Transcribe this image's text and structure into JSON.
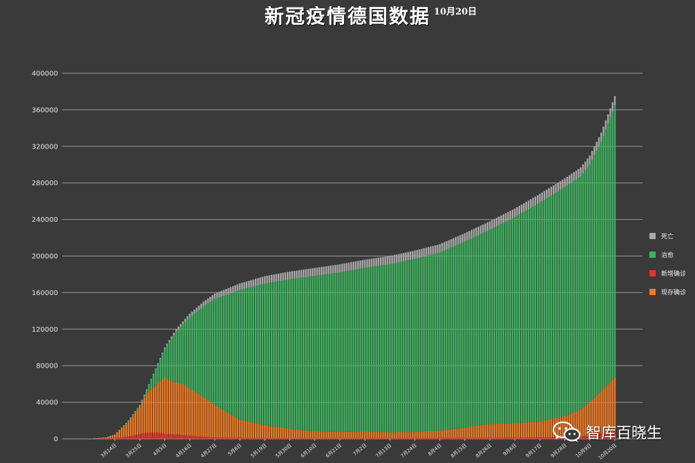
{
  "title": "新冠疫情德国数据",
  "date_label": "10月20日",
  "watermark": {
    "text": "智库百晓生",
    "icon": "wechat-icon"
  },
  "colors": {
    "background": "#3a3a3a",
    "grid": "#9a9a9a",
    "death": "#a9a9a9",
    "recovered": "#3cb55e",
    "new_confirmed": "#e8322a",
    "active": "#f47a1f"
  },
  "chart_data": {
    "type": "bar",
    "stacked": true,
    "title": "新冠疫情德国数据",
    "ylim": [
      0,
      400000
    ],
    "yticks": [
      0,
      40000,
      80000,
      120000,
      160000,
      200000,
      240000,
      280000,
      320000,
      360000,
      400000
    ],
    "x_start": "2020-03-03",
    "x_end": "2020-10-20",
    "xtick_labels": [
      "3月14日",
      "3月25日",
      "4月5日",
      "4月16日",
      "4月27日",
      "5月8日",
      "5月19日",
      "5月30日",
      "6月10日",
      "6月21日",
      "7月2日",
      "7月13日",
      "7月24日",
      "8月4日",
      "8月15日",
      "8月26日",
      "9月6日",
      "9月17日",
      "9月28日",
      "10月9日",
      "10月20日"
    ],
    "legend_position": "right",
    "legend": [
      "死亡",
      "治愈",
      "新增确诊",
      "现存确诊"
    ],
    "series_order_bottom_to_top": [
      "现存确诊",
      "治愈",
      "死亡"
    ],
    "overlay_series": "新增确诊",
    "keypoints": {
      "total": {
        "dates": [
          "2020-03-03",
          "2020-03-10",
          "2020-03-14",
          "2020-03-20",
          "2020-03-25",
          "2020-04-01",
          "2020-04-05",
          "2020-04-10",
          "2020-04-16",
          "2020-04-22",
          "2020-04-27",
          "2020-05-03",
          "2020-05-08",
          "2020-05-19",
          "2020-05-30",
          "2020-06-10",
          "2020-06-21",
          "2020-07-02",
          "2020-07-13",
          "2020-07-24",
          "2020-08-04",
          "2020-08-15",
          "2020-08-26",
          "2020-09-06",
          "2020-09-17",
          "2020-09-28",
          "2020-10-05",
          "2020-10-09",
          "2020-10-14",
          "2020-10-20"
        ],
        "values": [
          200,
          1500,
          4600,
          20000,
          37000,
          77000,
          100000,
          120000,
          137000,
          150000,
          159000,
          165000,
          170000,
          178000,
          183000,
          187000,
          191000,
          196000,
          200000,
          206000,
          213000,
          225000,
          238000,
          252000,
          268000,
          285000,
          297000,
          310000,
          335000,
          375000
        ]
      },
      "death": {
        "dates": [
          "2020-03-03",
          "2020-03-25",
          "2020-04-05",
          "2020-04-16",
          "2020-04-27",
          "2020-05-19",
          "2020-06-21",
          "2020-08-04",
          "2020-09-06",
          "2020-10-20"
        ],
        "values": [
          0,
          200,
          1600,
          4000,
          6100,
          8200,
          8900,
          9200,
          9400,
          9900
        ]
      },
      "active": {
        "dates": [
          "2020-03-03",
          "2020-03-10",
          "2020-03-14",
          "2020-03-20",
          "2020-03-25",
          "2020-03-28",
          "2020-04-01",
          "2020-04-05",
          "2020-04-08",
          "2020-04-10",
          "2020-04-13",
          "2020-04-16",
          "2020-04-22",
          "2020-04-27",
          "2020-05-03",
          "2020-05-08",
          "2020-05-19",
          "2020-05-30",
          "2020-06-10",
          "2020-06-21",
          "2020-07-02",
          "2020-07-13",
          "2020-07-24",
          "2020-08-04",
          "2020-08-15",
          "2020-08-26",
          "2020-09-06",
          "2020-09-17",
          "2020-09-28",
          "2020-10-05",
          "2020-10-09",
          "2020-10-14",
          "2020-10-20"
        ],
        "values": [
          200,
          1500,
          4400,
          18000,
          35000,
          50000,
          58000,
          68000,
          62000,
          62000,
          60000,
          55000,
          46000,
          37000,
          28000,
          21000,
          15000,
          11000,
          8000,
          7500,
          8000,
          7000,
          7500,
          9000,
          12000,
          16500,
          17000,
          19000,
          25000,
          32000,
          40000,
          52000,
          67000
        ]
      },
      "new_confirmed": {
        "dates": [
          "2020-03-03",
          "2020-03-14",
          "2020-03-20",
          "2020-03-27",
          "2020-04-02",
          "2020-04-05",
          "2020-04-10",
          "2020-04-16",
          "2020-04-27",
          "2020-05-08",
          "2020-06-10",
          "2020-08-04",
          "2020-09-06",
          "2020-10-01",
          "2020-10-10",
          "2020-10-16",
          "2020-10-20"
        ],
        "values": [
          0,
          1000,
          2500,
          6500,
          7000,
          5500,
          5000,
          3500,
          1500,
          1000,
          400,
          900,
          1200,
          2000,
          4000,
          7500,
          8000
        ]
      }
    }
  }
}
